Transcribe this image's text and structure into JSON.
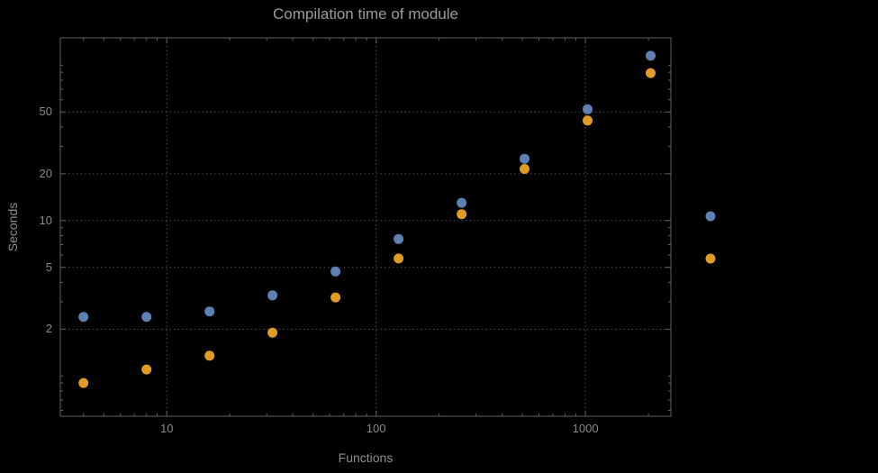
{
  "title": "Compilation time of module",
  "colors": {
    "background": "#000000",
    "frame": "#606060",
    "grid": "#4f4f4f",
    "text": "#8f8f8f",
    "series1": "#5e81b5",
    "series2": "#e19c24"
  },
  "chart_data": {
    "type": "scatter",
    "title": "Compilation time of module",
    "xlabel": "Functions",
    "ylabel": "Seconds",
    "xscale": "log",
    "yscale": "log",
    "xlim": [
      3.1,
      2560
    ],
    "ylim": [
      0.55,
      150
    ],
    "grid": true,
    "legend_position": "right-outside",
    "x": [
      4,
      8,
      16,
      32,
      64,
      128,
      256,
      512,
      1024,
      2048
    ],
    "series": [
      {
        "name": "series-1-blue",
        "color": "#5e81b5",
        "values": [
          2.4,
          2.4,
          2.6,
          3.3,
          4.7,
          7.6,
          13,
          25,
          52,
          115
        ]
      },
      {
        "name": "series-2-orange",
        "color": "#e19c24",
        "values": [
          0.9,
          1.1,
          1.35,
          1.9,
          3.2,
          5.7,
          11,
          21.5,
          44,
          89
        ]
      }
    ],
    "x_ticks": [
      {
        "value": 10,
        "label": "10"
      },
      {
        "value": 100,
        "label": "100"
      },
      {
        "value": 1000,
        "label": "1000"
      }
    ],
    "y_ticks": [
      {
        "value": 2,
        "label": "2"
      },
      {
        "value": 5,
        "label": "5"
      },
      {
        "value": 10,
        "label": "10"
      },
      {
        "value": 20,
        "label": "20"
      },
      {
        "value": 50,
        "label": "50"
      }
    ]
  },
  "legend": {
    "markers": [
      {
        "name": "legend-marker-series-1",
        "color": "#5e81b5"
      },
      {
        "name": "legend-marker-series-2",
        "color": "#e19c24"
      }
    ]
  }
}
